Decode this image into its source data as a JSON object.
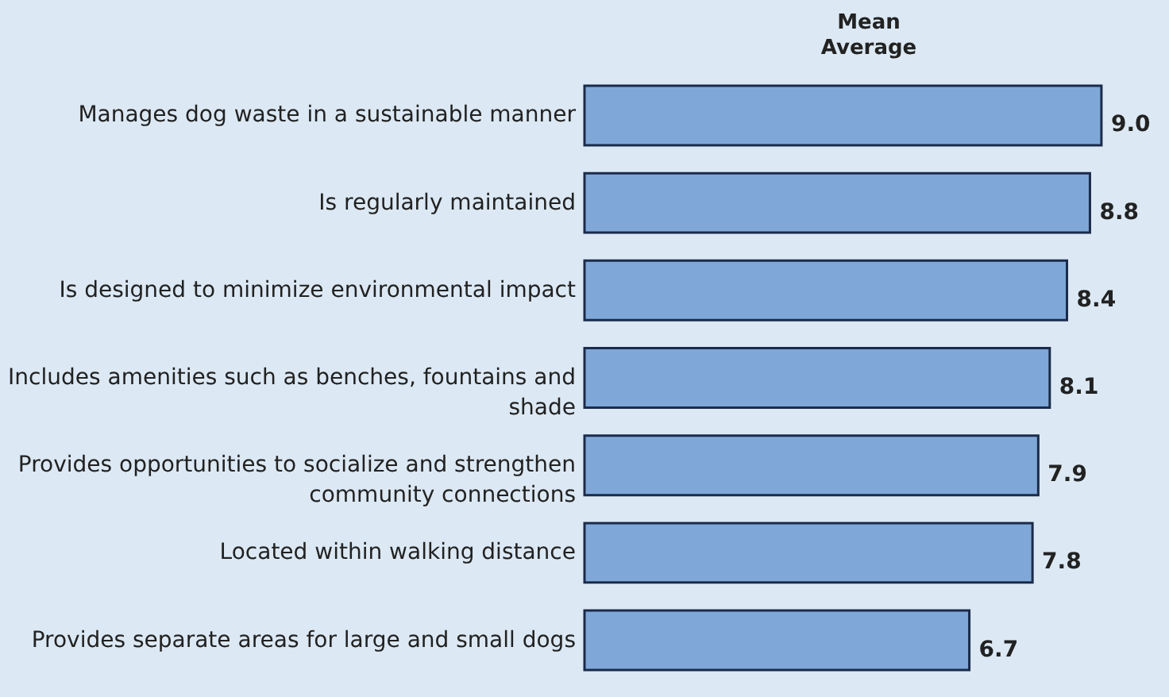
{
  "chart_data": {
    "type": "bar",
    "orientation": "horizontal",
    "title": "Mean",
    "subtitle": "Average",
    "categories": [
      "Manages dog waste in a sustainable manner",
      "Is regularly maintained",
      "Is designed to minimize environmental impact",
      "Includes amenities such as benches, fountains and shade",
      "Provides opportunities to socialize and strengthen community connections",
      "Located within walking distance",
      "Provides separate areas for large and small dogs"
    ],
    "values": [
      9.0,
      8.8,
      8.4,
      8.1,
      7.9,
      7.8,
      6.7
    ],
    "value_labels": [
      "9.0",
      "8.8",
      "8.4",
      "8.1",
      "7.9",
      "7.8",
      "6.7"
    ],
    "color": "#7fa8d8"
  }
}
